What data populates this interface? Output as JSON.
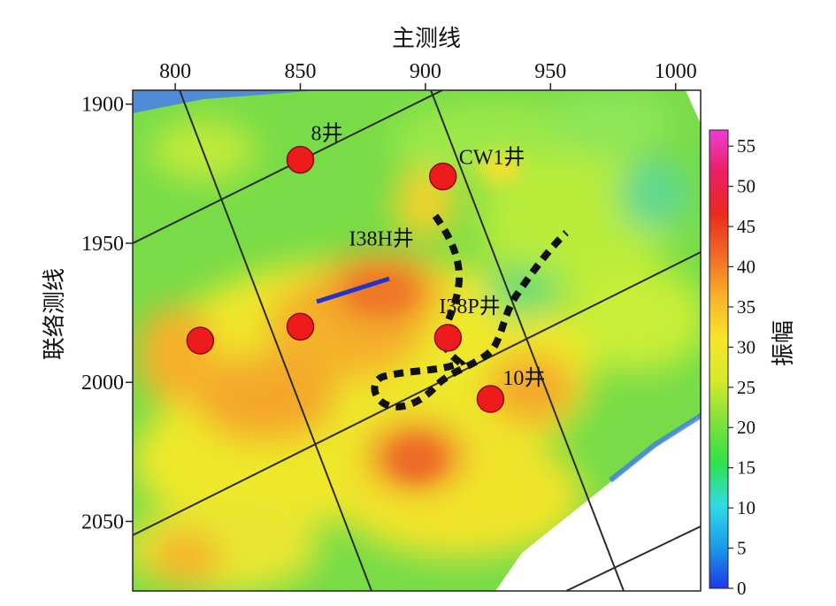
{
  "map": {
    "top_axis_title": "主测线",
    "left_axis_title": "联络测线",
    "x_axis": {
      "ticks": [
        "800",
        "850",
        "900",
        "950",
        "1000"
      ],
      "range": [
        783,
        1010
      ]
    },
    "y_axis": {
      "ticks": [
        "1900",
        "1950",
        "2000",
        "2050"
      ],
      "range": [
        1895,
        2075
      ]
    },
    "wells": [
      {
        "name": "8井",
        "label": "8井",
        "x": 850,
        "y": 1920
      },
      {
        "name": "CW1井",
        "label": "CW1井",
        "x": 907,
        "y": 1926
      },
      {
        "name": "I38H井",
        "label": "I38H井",
        "x": 850,
        "y": 1980
      },
      {
        "name": "well-west",
        "label": "",
        "x": 810,
        "y": 1985
      },
      {
        "name": "I38P井",
        "label": "I38P井",
        "x": 909,
        "y": 1984
      },
      {
        "name": "10井",
        "label": "10井",
        "x": 926,
        "y": 2006
      }
    ],
    "horizontal_well_trace": {
      "from": [
        858,
        1970
      ],
      "to": [
        886,
        1962
      ]
    }
  },
  "colorbar": {
    "title": "振幅",
    "ticks": [
      "0",
      "5",
      "10",
      "15",
      "20",
      "25",
      "30",
      "35",
      "40",
      "45",
      "50",
      "55"
    ],
    "range": [
      0,
      57
    ],
    "colors": [
      "#1e37e6",
      "#1b9ce8",
      "#2fdce6",
      "#2ee24a",
      "#7ee23a",
      "#d6ea28",
      "#f6e628",
      "#f7b22b",
      "#f06a24",
      "#ea2a1e",
      "#ec1f63",
      "#ef3cd6"
    ]
  },
  "colors": {
    "well_fill": "#ee1b1b",
    "well_stroke": "#8a0a0a",
    "trace": "#2233cc",
    "outline": "#111111",
    "grid": "#2c2c2c",
    "background_green": "#7ade46"
  }
}
